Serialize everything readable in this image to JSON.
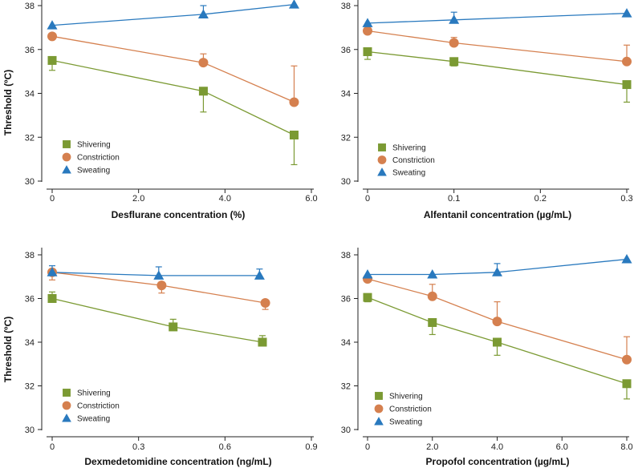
{
  "chart_data": [
    {
      "type": "line",
      "xlabel": "Desflurane concentration (%)",
      "ylabel": "Threshold (ºC)",
      "xlim": [
        0,
        6
      ],
      "xticks": [
        0,
        2,
        4,
        6
      ],
      "xtick_labels": [
        "0",
        "2.0",
        "4.0",
        "6.0"
      ],
      "ylim": [
        30,
        38
      ],
      "yticks": [
        30,
        32,
        34,
        36,
        38
      ],
      "ytick_labels": [
        "30",
        "32",
        "34",
        "36",
        "38"
      ],
      "legend": "lower-left",
      "series": [
        {
          "name": "Shivering",
          "icon": "square-marker-icon",
          "color": "#7b9a33",
          "x": [
            0,
            3.5,
            5.6
          ],
          "y": [
            35.5,
            34.1,
            32.1
          ],
          "err_to": [
            35.05,
            33.15,
            30.75
          ]
        },
        {
          "name": "Constriction",
          "icon": "circle-marker-icon",
          "color": "#d5804f",
          "x": [
            0,
            3.5,
            5.6
          ],
          "y": [
            36.6,
            35.4,
            33.6
          ],
          "err_to": [
            null,
            35.8,
            35.25
          ]
        },
        {
          "name": "Sweating",
          "icon": "triangle-marker-icon",
          "color": "#2979be",
          "x": [
            0,
            3.5,
            5.6
          ],
          "y": [
            37.1,
            37.6,
            38.05
          ],
          "err_to": [
            null,
            38.0,
            null
          ]
        }
      ]
    },
    {
      "type": "line",
      "xlabel": "Alfentanil concentration (µg/mL)",
      "xlim": [
        0,
        0.3
      ],
      "xticks": [
        0,
        0.1,
        0.2,
        0.3
      ],
      "xtick_labels": [
        "0",
        "0.1",
        "0.2",
        "0.3"
      ],
      "ylim": [
        30,
        38
      ],
      "yticks": [
        30,
        32,
        34,
        36,
        38
      ],
      "ytick_labels": [
        "30",
        "32",
        "34",
        "36",
        "38"
      ],
      "legend": "lower-left",
      "series": [
        {
          "name": "Shivering",
          "icon": "square-marker-icon",
          "color": "#7b9a33",
          "x": [
            0,
            0.1,
            0.3
          ],
          "y": [
            35.9,
            35.45,
            34.4
          ],
          "err_to": [
            35.55,
            35.25,
            33.6
          ]
        },
        {
          "name": "Constriction",
          "icon": "circle-marker-icon",
          "color": "#d5804f",
          "x": [
            0,
            0.1,
            0.3
          ],
          "y": [
            36.85,
            36.3,
            35.45
          ],
          "err_to": [
            null,
            36.55,
            36.2
          ]
        },
        {
          "name": "Sweating",
          "icon": "triangle-marker-icon",
          "color": "#2979be",
          "x": [
            0,
            0.1,
            0.3
          ],
          "y": [
            37.2,
            37.35,
            37.65
          ],
          "err_to": [
            null,
            37.7,
            null
          ]
        }
      ]
    },
    {
      "type": "line",
      "xlabel": "Dexmedetomidine concentration (ng/mL)",
      "ylabel": "Threshold (ºC)",
      "xlim": [
        0,
        0.9
      ],
      "xticks": [
        0,
        0.3,
        0.6,
        0.9
      ],
      "xtick_labels": [
        "0",
        "0.3",
        "0.6",
        "0.9"
      ],
      "ylim": [
        30,
        38
      ],
      "yticks": [
        30,
        32,
        34,
        36,
        38
      ],
      "ytick_labels": [
        "30",
        "32",
        "34",
        "36",
        "38"
      ],
      "legend": "lower-left",
      "series": [
        {
          "name": "Shivering",
          "icon": "square-marker-icon",
          "color": "#7b9a33",
          "x": [
            0,
            0.42,
            0.73
          ],
          "y": [
            36.0,
            34.7,
            34.0
          ],
          "err_to": [
            36.3,
            35.05,
            34.3
          ]
        },
        {
          "name": "Constriction",
          "icon": "circle-marker-icon",
          "color": "#d5804f",
          "x": [
            0,
            0.38,
            0.74
          ],
          "y": [
            37.2,
            36.6,
            35.8
          ],
          "err_to": [
            36.85,
            36.25,
            35.5
          ]
        },
        {
          "name": "Sweating",
          "icon": "triangle-marker-icon",
          "color": "#2979be",
          "x": [
            0,
            0.37,
            0.72
          ],
          "y": [
            37.2,
            37.05,
            37.05
          ],
          "err_to": [
            37.5,
            37.45,
            37.35
          ]
        }
      ]
    },
    {
      "type": "line",
      "xlabel": "Propofol concentration (µg/mL)",
      "xlim": [
        0,
        8
      ],
      "xticks": [
        0,
        2,
        4,
        6,
        8
      ],
      "xtick_labels": [
        "0",
        "2.0",
        "4.0",
        "6.0",
        "8.0"
      ],
      "ylim": [
        30,
        38
      ],
      "yticks": [
        30,
        32,
        34,
        36,
        38
      ],
      "ytick_labels": [
        "30",
        "32",
        "34",
        "36",
        "38"
      ],
      "legend": "lower-left",
      "series": [
        {
          "name": "Shivering",
          "icon": "square-marker-icon",
          "color": "#7b9a33",
          "x": [
            0,
            2,
            4,
            8
          ],
          "y": [
            36.05,
            34.9,
            34.0,
            32.1
          ],
          "err_to": [
            35.85,
            34.35,
            33.4,
            31.4
          ]
        },
        {
          "name": "Constriction",
          "icon": "circle-marker-icon",
          "color": "#d5804f",
          "x": [
            0,
            2,
            4,
            8
          ],
          "y": [
            36.9,
            36.1,
            34.95,
            33.2
          ],
          "err_to": [
            null,
            36.65,
            35.85,
            34.25
          ]
        },
        {
          "name": "Sweating",
          "icon": "triangle-marker-icon",
          "color": "#2979be",
          "x": [
            0,
            2,
            4,
            8
          ],
          "y": [
            37.1,
            37.1,
            37.2,
            37.8
          ],
          "err_to": [
            null,
            null,
            37.6,
            null
          ]
        }
      ]
    }
  ]
}
